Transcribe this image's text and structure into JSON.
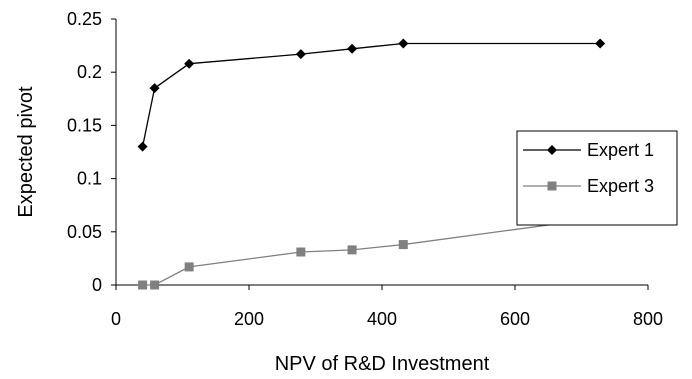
{
  "chart_data": {
    "type": "line",
    "title": "",
    "xlabel": "NPV of R&D Investment",
    "ylabel": "Expected pivot",
    "xlim": [
      0,
      800
    ],
    "ylim": [
      0,
      0.25
    ],
    "xticks": [
      0,
      200,
      400,
      600,
      800
    ],
    "xtick_labels": [
      "0",
      "200",
      "400",
      "600",
      "800"
    ],
    "yticks": [
      0,
      0.05,
      0.1,
      0.15,
      0.2,
      0.25
    ],
    "ytick_labels": [
      "0",
      "0.05",
      "0.1",
      "0.15",
      "0.2",
      "0.25"
    ],
    "grid": false,
    "legend_position": "right",
    "series": [
      {
        "name": "Expert 1",
        "marker": "diamond",
        "color": "#000000",
        "x": [
          40,
          58,
          110,
          278,
          355,
          432,
          728
        ],
        "y": [
          0.13,
          0.185,
          0.208,
          0.217,
          0.222,
          0.227,
          0.227
        ]
      },
      {
        "name": "Expert 3",
        "marker": "square",
        "color": "#808080",
        "x": [
          40,
          58,
          110,
          278,
          355,
          432,
          728
        ],
        "y": [
          0.0,
          0.0,
          0.017,
          0.031,
          0.033,
          0.038,
          0.063
        ]
      }
    ]
  }
}
